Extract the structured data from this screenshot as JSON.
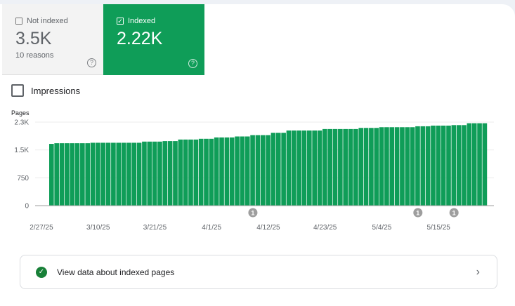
{
  "tiles": {
    "not_indexed": {
      "label": "Not indexed",
      "value": "3.5K",
      "sub": "10 reasons",
      "checked": false,
      "help_icon": "help-circle-icon"
    },
    "indexed": {
      "label": "Indexed",
      "value": "2.22K",
      "checked": true,
      "help_icon": "help-circle-icon",
      "color": "#0f9d58"
    }
  },
  "impressions": {
    "label": "Impressions",
    "checked": false
  },
  "chart_data": {
    "type": "bar",
    "ylabel": "Pages",
    "ylim": [
      0,
      2250
    ],
    "yticks": [
      {
        "v": 0,
        "label": "0"
      },
      {
        "v": 750,
        "label": "750"
      },
      {
        "v": 1500,
        "label": "1.5K"
      },
      {
        "v": 2250,
        "label": "2.3K"
      }
    ],
    "xticks": [
      "2/27/25",
      "3/10/25",
      "3/21/25",
      "4/1/25",
      "4/12/25",
      "4/23/25",
      "5/4/25",
      "5/15/25"
    ],
    "x": [
      "3/1/25",
      "3/2/25",
      "3/3/25",
      "3/4/25",
      "3/5/25",
      "3/6/25",
      "3/7/25",
      "3/8/25",
      "3/9/25",
      "3/10/25",
      "3/11/25",
      "3/12/25",
      "3/13/25",
      "3/14/25",
      "3/15/25",
      "3/16/25",
      "3/17/25",
      "3/18/25",
      "3/19/25",
      "3/20/25",
      "3/21/25",
      "3/22/25",
      "3/23/25",
      "3/24/25",
      "3/25/25",
      "3/26/25",
      "3/27/25",
      "3/28/25",
      "3/29/25",
      "3/30/25",
      "3/31/25",
      "4/1/25",
      "4/2/25",
      "4/3/25",
      "4/4/25",
      "4/5/25",
      "4/6/25",
      "4/7/25",
      "4/8/25",
      "4/9/25",
      "4/10/25",
      "4/11/25",
      "4/12/25",
      "4/13/25",
      "4/14/25",
      "4/15/25",
      "4/16/25",
      "4/17/25",
      "4/18/25",
      "4/19/25",
      "4/20/25",
      "4/21/25",
      "4/22/25",
      "4/23/25",
      "4/24/25",
      "4/25/25",
      "4/26/25",
      "4/27/25",
      "4/28/25",
      "4/29/25",
      "4/30/25",
      "5/1/25",
      "5/2/25",
      "5/3/25",
      "5/4/25",
      "5/5/25",
      "5/6/25",
      "5/7/25",
      "5/8/25",
      "5/9/25",
      "5/10/25",
      "5/11/25",
      "5/12/25",
      "5/13/25",
      "5/14/25",
      "5/15/25",
      "5/16/25",
      "5/17/25",
      "5/18/25",
      "5/19/25",
      "5/20/25",
      "5/21/25",
      "5/22/25",
      "5/23/25",
      "5/24/25"
    ],
    "values": [
      1663,
      1681,
      1681,
      1681,
      1681,
      1681,
      1681,
      1681,
      1694,
      1694,
      1694,
      1694,
      1694,
      1694,
      1694,
      1694,
      1694,
      1694,
      1725,
      1725,
      1725,
      1725,
      1738,
      1738,
      1738,
      1781,
      1781,
      1781,
      1781,
      1800,
      1800,
      1800,
      1838,
      1838,
      1838,
      1838,
      1863,
      1863,
      1863,
      1900,
      1900,
      1900,
      1900,
      1963,
      1963,
      1963,
      2025,
      2025,
      2025,
      2025,
      2025,
      2025,
      2025,
      2063,
      2063,
      2063,
      2063,
      2063,
      2063,
      2063,
      2094,
      2094,
      2094,
      2094,
      2113,
      2113,
      2113,
      2113,
      2113,
      2113,
      2113,
      2138,
      2138,
      2138,
      2156,
      2156,
      2156,
      2156,
      2169,
      2169,
      2169,
      2220,
      2220,
      2220,
      2220
    ],
    "annotations": [
      {
        "date": "4/9/25",
        "label": "1"
      },
      {
        "date": "5/11/25",
        "label": "1"
      },
      {
        "date": "5/18/25",
        "label": "1"
      }
    ],
    "color": "#0f9d58",
    "grid": true
  },
  "footer": {
    "label": "View data about indexed pages",
    "icon": "check-circle-icon",
    "chevron": "›"
  }
}
